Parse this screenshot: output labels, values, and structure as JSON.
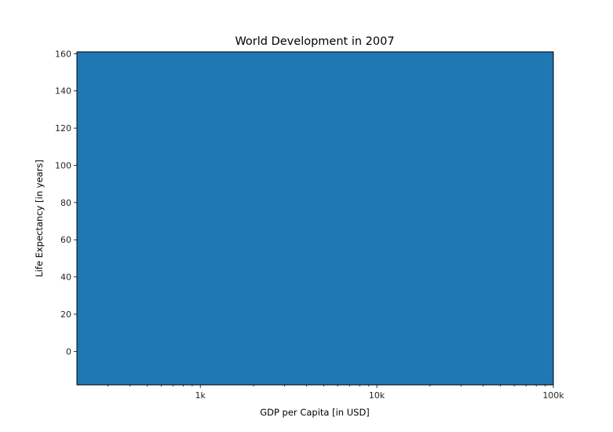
{
  "chart_data": {
    "type": "area",
    "title": "World Development in 2007",
    "xlabel": "GDP per Capita [in USD]",
    "ylabel": "Life Expectancy [in years]",
    "xscale": "log",
    "xlim": [
      200,
      100000
    ],
    "ylim": [
      -18,
      161
    ],
    "x_ticks": [
      {
        "value": 1000,
        "label": "1k"
      },
      {
        "value": 10000,
        "label": "10k"
      },
      {
        "value": 100000,
        "label": "100k"
      }
    ],
    "y_ticks": [
      {
        "value": 0,
        "label": "0"
      },
      {
        "value": 20,
        "label": "20"
      },
      {
        "value": 40,
        "label": "40"
      },
      {
        "value": 60,
        "label": "60"
      },
      {
        "value": 80,
        "label": "80"
      },
      {
        "value": 100,
        "label": "100"
      },
      {
        "value": 120,
        "label": "120"
      },
      {
        "value": 140,
        "label": "140"
      },
      {
        "value": 160,
        "label": "160"
      }
    ],
    "fill_color": "#1f77b4",
    "grid": false,
    "legend": "none"
  }
}
